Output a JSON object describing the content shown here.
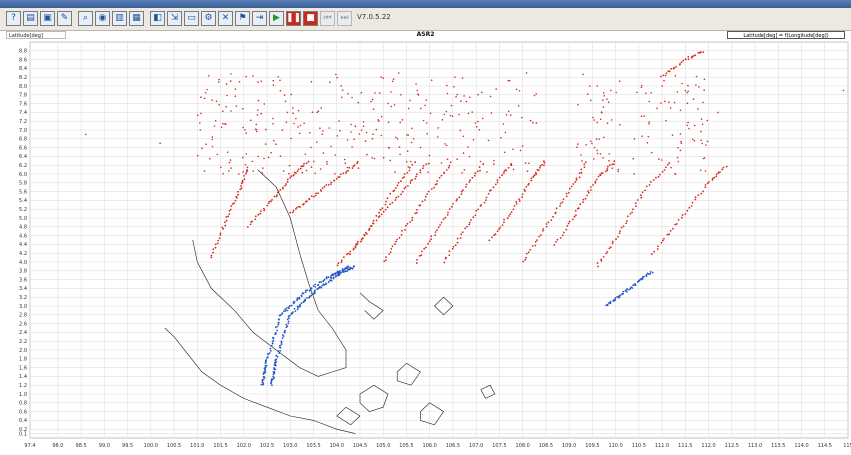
{
  "window": {
    "title": ""
  },
  "toolbar": {
    "buttons": [
      {
        "name": "help-button",
        "glyph": "?"
      },
      {
        "name": "open-file-button",
        "glyph": "▤"
      },
      {
        "name": "save-button",
        "glyph": "▣"
      },
      {
        "name": "edit-button",
        "glyph": "✎"
      },
      {
        "name": "zoom-button",
        "glyph": "⌕"
      },
      {
        "name": "filter-button",
        "glyph": "◉"
      },
      {
        "name": "chart-button",
        "glyph": "▥"
      },
      {
        "name": "table-button",
        "glyph": "▦"
      },
      {
        "name": "layers-button",
        "glyph": "◧"
      },
      {
        "name": "export-button",
        "glyph": "⇲"
      },
      {
        "name": "window-button",
        "glyph": "▭"
      },
      {
        "name": "settings-button",
        "glyph": "⚙"
      },
      {
        "name": "close-view-button",
        "glyph": "✕"
      },
      {
        "name": "script-button",
        "glyph": "⚑"
      },
      {
        "name": "step-button",
        "glyph": "⇥"
      },
      {
        "name": "play-button",
        "glyph": "▶"
      },
      {
        "name": "pause-button",
        "glyph": "❚❚"
      },
      {
        "name": "stop-button",
        "glyph": "■"
      },
      {
        "name": "rewind-button",
        "glyph": "⏮"
      },
      {
        "name": "forward-button",
        "glyph": "⏭"
      }
    ],
    "version": "V7.0.5.22"
  },
  "plot": {
    "y_axis_label": "Latitude[deg]",
    "title": "ASR2",
    "legend": "Latitude[deg] = f(Longitude[deg])"
  },
  "colors": {
    "red_series": "#d62a1e",
    "blue_series": "#2456c4",
    "map_outline": "#1a1a1a",
    "grid": "#d9d9d9"
  },
  "chart_data": {
    "type": "scatter",
    "xlabel": "",
    "ylabel": "Latitude[deg]",
    "title": "ASR2",
    "xlim": [
      97.4,
      115.0
    ],
    "ylim": [
      0.0,
      9.0
    ],
    "grid": true,
    "legend": "top-right",
    "x_ticks": [
      "97.4",
      "98.0",
      "98.5",
      "99.0",
      "99.5",
      "100.0",
      "100.5",
      "101.0",
      "101.5",
      "102.0",
      "102.5",
      "103.0",
      "103.5",
      "104.0",
      "104.5",
      "105.0",
      "105.5",
      "106.0",
      "106.5",
      "107.0",
      "107.5",
      "108.0",
      "108.5",
      "109.0",
      "109.5",
      "110.0",
      "110.5",
      "111.0",
      "111.5",
      "112.0",
      "112.5",
      "113.0",
      "113.5",
      "114.0",
      "114.5",
      "115"
    ],
    "y_ticks": [
      "0.1",
      "0.2",
      "0.4",
      "0.6",
      "0.8",
      "1.0",
      "1.2",
      "1.4",
      "1.6",
      "1.8",
      "2.0",
      "2.2",
      "2.4",
      "2.6",
      "2.8",
      "3.0",
      "3.2",
      "3.4",
      "3.6",
      "3.8",
      "4.0",
      "4.2",
      "4.4",
      "4.6",
      "4.8",
      "5.0",
      "5.2",
      "5.4",
      "5.6",
      "5.8",
      "6.0",
      "6.2",
      "6.4",
      "6.6",
      "6.8",
      "7.0",
      "7.2",
      "7.4",
      "7.6",
      "7.8",
      "8.0",
      "8.2",
      "8.4",
      "8.6",
      "8.8"
    ],
    "series": [
      {
        "color": "#d62a1e",
        "tracks": [
          {
            "x": [
              101.3,
              101.6,
              101.9,
              102.1
            ],
            "y": [
              4.1,
              4.9,
              5.6,
              6.2
            ]
          },
          {
            "x": [
              102.1,
              102.6,
              103.0,
              103.4
            ],
            "y": [
              4.8,
              5.4,
              5.9,
              6.3
            ]
          },
          {
            "x": [
              103.0,
              103.5,
              104.0,
              104.5
            ],
            "y": [
              5.1,
              5.5,
              5.9,
              6.3
            ]
          },
          {
            "x": [
              104.0,
              104.6,
              105.2,
              105.7
            ],
            "y": [
              3.9,
              4.6,
              5.6,
              6.3
            ]
          },
          {
            "x": [
              104.3,
              104.9,
              105.5,
              106.0
            ],
            "y": [
              4.2,
              5.0,
              5.7,
              6.3
            ]
          },
          {
            "x": [
              105.0,
              105.5,
              106.0,
              106.5
            ],
            "y": [
              4.0,
              4.8,
              5.6,
              6.3
            ]
          },
          {
            "x": [
              105.7,
              106.2,
              106.7,
              107.2
            ],
            "y": [
              4.0,
              4.8,
              5.6,
              6.3
            ]
          },
          {
            "x": [
              106.3,
              106.8,
              107.3,
              107.8
            ],
            "y": [
              4.0,
              4.8,
              5.6,
              6.3
            ]
          },
          {
            "x": [
              107.3,
              107.8,
              108.2,
              108.5
            ],
            "y": [
              4.5,
              5.2,
              5.9,
              6.3
            ]
          },
          {
            "x": [
              108.0,
              108.5,
              109.0,
              109.4
            ],
            "y": [
              4.0,
              4.8,
              5.6,
              6.3
            ]
          },
          {
            "x": [
              108.7,
              109.2,
              109.6,
              110.0
            ],
            "y": [
              4.4,
              5.2,
              5.9,
              6.3
            ]
          },
          {
            "x": [
              109.6,
              110.1,
              110.6,
              111.2
            ],
            "y": [
              3.9,
              4.7,
              5.6,
              6.3
            ]
          },
          {
            "x": [
              110.8,
              111.4,
              112.0,
              112.4
            ],
            "y": [
              4.2,
              5.0,
              5.8,
              6.2
            ]
          },
          {
            "x": [
              111.0,
              111.5,
              111.9
            ],
            "y": [
              8.2,
              8.6,
              8.8
            ]
          }
        ],
        "cloud": {
          "x_range": [
            101.0,
            112.0
          ],
          "y_range": [
            6.0,
            8.3
          ]
        }
      },
      {
        "color": "#2456c4",
        "tracks": [
          {
            "x": [
              102.4,
              102.5,
              102.8,
              103.3,
              103.9,
              104.3
            ],
            "y": [
              1.2,
              1.8,
              2.8,
              3.3,
              3.7,
              3.9
            ]
          },
          {
            "x": [
              102.6,
              102.7,
              103.0,
              103.5,
              104.0,
              104.4
            ],
            "y": [
              1.2,
              1.8,
              2.8,
              3.3,
              3.7,
              3.9
            ]
          },
          {
            "x": [
              109.8,
              110.3,
              110.8
            ],
            "y": [
              3.0,
              3.4,
              3.8
            ]
          }
        ]
      }
    ]
  }
}
